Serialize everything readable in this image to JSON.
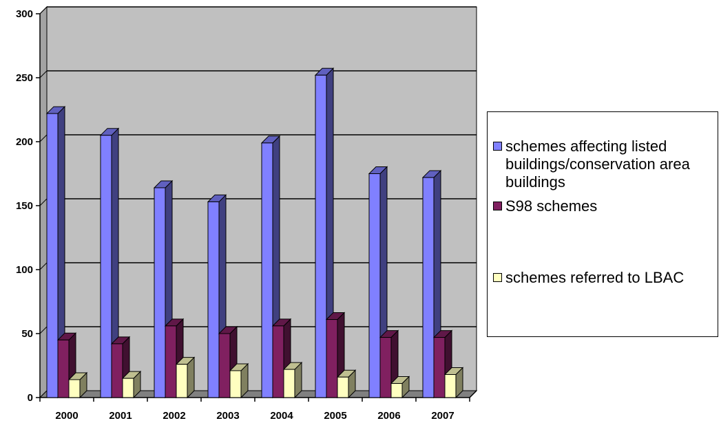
{
  "chart_data": {
    "type": "bar",
    "categories": [
      "2000",
      "2001",
      "2002",
      "2003",
      "2004",
      "2005",
      "2006",
      "2007"
    ],
    "series": [
      {
        "name": "schemes affecting listed buildings/conservation area buildings",
        "values": [
          222,
          205,
          164,
          153,
          199,
          252,
          175,
          172
        ],
        "color": "#8080FF"
      },
      {
        "name": "S98 schemes",
        "values": [
          45,
          42,
          56,
          50,
          56,
          61,
          47,
          47
        ],
        "color": "#802060"
      },
      {
        "name": "schemes referred to LBAC",
        "values": [
          14,
          15,
          26,
          21,
          22,
          16,
          11,
          18
        ],
        "color": "#FFFFC0"
      }
    ],
    "yticks": [
      "0",
      "50",
      "100",
      "150",
      "200",
      "250",
      "300"
    ],
    "ylim": [
      0,
      300
    ],
    "grid": true,
    "legend_position": "right",
    "wall_color": "#C0C0C0",
    "floor_color": "#808080"
  }
}
